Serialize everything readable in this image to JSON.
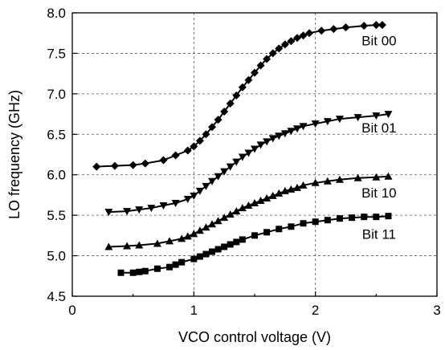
{
  "chart_data": {
    "type": "line",
    "title": "",
    "xlabel": "VCO control voltage (V)",
    "ylabel": "LO frequency (GHz)",
    "xlim": [
      0,
      3
    ],
    "ylim": [
      4.5,
      8.0
    ],
    "x_ticks": [
      0,
      1,
      2,
      3
    ],
    "x_tick_labels": [
      "0",
      "1",
      "2",
      "3"
    ],
    "y_ticks": [
      4.5,
      5.0,
      5.5,
      6.0,
      6.5,
      7.0,
      7.5,
      8.0
    ],
    "y_tick_labels": [
      "4.5",
      "5.0",
      "5.5",
      "6.0",
      "6.5",
      "7.0",
      "7.5",
      "8.0"
    ],
    "grid": true,
    "series": [
      {
        "name": "Bit 00",
        "marker": "diamond",
        "label_at": [
          2.55,
          7.66
        ],
        "x": [
          0.2,
          0.35,
          0.5,
          0.6,
          0.75,
          0.85,
          0.95,
          1.0,
          1.05,
          1.1,
          1.15,
          1.2,
          1.25,
          1.3,
          1.35,
          1.4,
          1.45,
          1.5,
          1.55,
          1.6,
          1.65,
          1.7,
          1.75,
          1.8,
          1.85,
          1.9,
          1.95,
          2.05,
          2.15,
          2.25,
          2.4,
          2.5,
          2.55
        ],
        "y": [
          6.1,
          6.11,
          6.12,
          6.14,
          6.18,
          6.24,
          6.3,
          6.35,
          6.42,
          6.5,
          6.59,
          6.68,
          6.78,
          6.88,
          6.98,
          7.08,
          7.17,
          7.26,
          7.35,
          7.43,
          7.5,
          7.56,
          7.61,
          7.65,
          7.69,
          7.72,
          7.75,
          7.78,
          7.8,
          7.82,
          7.84,
          7.85,
          7.85
        ]
      },
      {
        "name": "Bit 01",
        "marker": "triangle-down",
        "label_at": [
          2.55,
          6.58
        ],
        "x": [
          0.3,
          0.45,
          0.55,
          0.65,
          0.75,
          0.85,
          0.95,
          1.0,
          1.05,
          1.1,
          1.15,
          1.2,
          1.25,
          1.3,
          1.35,
          1.4,
          1.45,
          1.5,
          1.55,
          1.6,
          1.65,
          1.7,
          1.75,
          1.8,
          1.85,
          1.9,
          2.0,
          2.1,
          2.2,
          2.35,
          2.5,
          2.6
        ],
        "y": [
          5.54,
          5.55,
          5.57,
          5.59,
          5.62,
          5.65,
          5.7,
          5.74,
          5.8,
          5.86,
          5.92,
          5.98,
          6.04,
          6.1,
          6.16,
          6.22,
          6.27,
          6.32,
          6.37,
          6.41,
          6.45,
          6.48,
          6.51,
          6.54,
          6.57,
          6.6,
          6.63,
          6.66,
          6.69,
          6.71,
          6.73,
          6.75
        ]
      },
      {
        "name": "Bit 10",
        "marker": "triangle-up",
        "label_at": [
          2.55,
          5.78
        ],
        "x": [
          0.3,
          0.45,
          0.55,
          0.7,
          0.8,
          0.9,
          0.95,
          1.0,
          1.05,
          1.1,
          1.15,
          1.2,
          1.25,
          1.3,
          1.35,
          1.4,
          1.45,
          1.5,
          1.55,
          1.6,
          1.65,
          1.7,
          1.75,
          1.8,
          1.85,
          1.9,
          2.0,
          2.1,
          2.2,
          2.35,
          2.5,
          2.6
        ],
        "y": [
          5.11,
          5.12,
          5.13,
          5.15,
          5.18,
          5.21,
          5.24,
          5.27,
          5.31,
          5.35,
          5.39,
          5.43,
          5.47,
          5.51,
          5.55,
          5.59,
          5.62,
          5.65,
          5.68,
          5.71,
          5.74,
          5.77,
          5.8,
          5.82,
          5.84,
          5.87,
          5.9,
          5.92,
          5.94,
          5.96,
          5.97,
          5.98
        ]
      },
      {
        "name": "Bit 11",
        "marker": "square",
        "label_at": [
          2.55,
          5.27
        ],
        "x": [
          0.4,
          0.5,
          0.55,
          0.6,
          0.7,
          0.8,
          0.85,
          0.9,
          1.0,
          1.05,
          1.1,
          1.15,
          1.2,
          1.25,
          1.3,
          1.35,
          1.4,
          1.5,
          1.6,
          1.7,
          1.8,
          1.9,
          2.0,
          2.1,
          2.2,
          2.3,
          2.4,
          2.5,
          2.6
        ],
        "y": [
          4.79,
          4.79,
          4.8,
          4.81,
          4.84,
          4.86,
          4.89,
          4.92,
          4.96,
          4.99,
          5.02,
          5.05,
          5.08,
          5.11,
          5.14,
          5.17,
          5.2,
          5.25,
          5.29,
          5.33,
          5.36,
          5.4,
          5.42,
          5.44,
          5.46,
          5.47,
          5.48,
          5.48,
          5.49
        ]
      }
    ]
  }
}
